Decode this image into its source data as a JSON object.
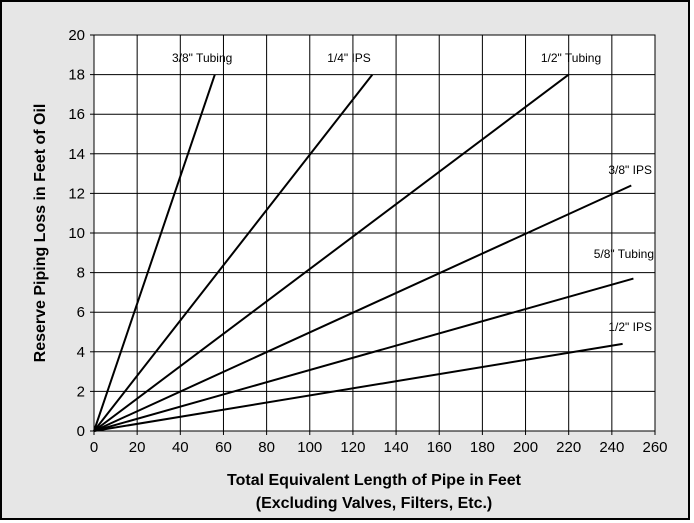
{
  "chart_data": {
    "type": "line",
    "title": "",
    "xlabel": "Total Equivalent Length of Pipe in Feet",
    "xlabel2": "(Excluding Valves, Filters, Etc.)",
    "ylabel": "Reserve Piping Loss in Feet of Oil",
    "xlim": [
      0,
      260
    ],
    "ylim": [
      0,
      20
    ],
    "xticks": [
      "0",
      "20",
      "40",
      "60",
      "80",
      "100",
      "120",
      "140",
      "160",
      "180",
      "200",
      "220",
      "240",
      "260"
    ],
    "yticks": [
      "0",
      "2",
      "4",
      "6",
      "8",
      "10",
      "12",
      "14",
      "16",
      "18",
      "20"
    ],
    "grid": true,
    "legend": "labels placed next to lines",
    "colors": {
      "background": "#e6e6e6",
      "plot_area": "#ffffff",
      "lines": "#000000",
      "grid": "#000000"
    },
    "series": [
      {
        "name": "3/8\" Tubing",
        "x": [
          0,
          56
        ],
        "y": [
          0,
          18
        ]
      },
      {
        "name": "1/4\" IPS",
        "x": [
          0,
          129
        ],
        "y": [
          0,
          18
        ]
      },
      {
        "name": "1/2\" Tubing",
        "x": [
          0,
          220
        ],
        "y": [
          0,
          18
        ]
      },
      {
        "name": "3/8\" IPS",
        "x": [
          0,
          249
        ],
        "y": [
          0,
          12.4
        ]
      },
      {
        "name": "5/8\" Tubing",
        "x": [
          0,
          250
        ],
        "y": [
          0,
          7.7
        ]
      },
      {
        "name": "1/2\" IPS",
        "x": [
          0,
          245
        ],
        "y": [
          0,
          4.4
        ]
      }
    ]
  }
}
